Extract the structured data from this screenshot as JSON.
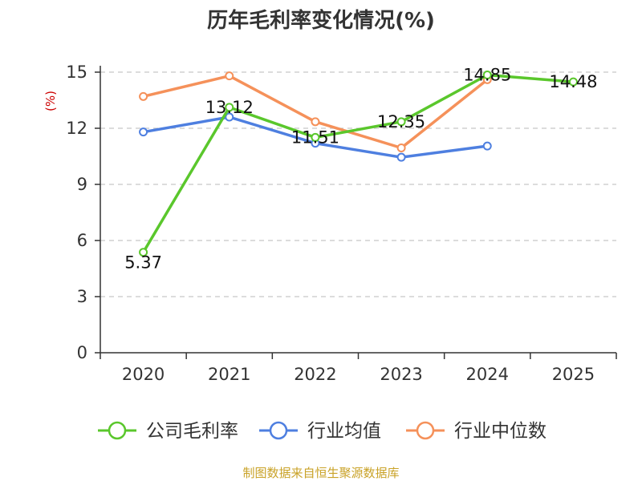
{
  "chart_data": {
    "type": "line",
    "title": "历年毛利率变化情况(%)",
    "ylabel": "(%)",
    "categories": [
      "2020",
      "2021",
      "2022",
      "2023",
      "2024",
      "2025"
    ],
    "ylim": [
      0,
      15
    ],
    "yticks": [
      0,
      3,
      6,
      9,
      12,
      15
    ],
    "grid": true,
    "legend_position": "bottom",
    "series": [
      {
        "name": "公司毛利率",
        "color": "#5ac72c",
        "values": [
          5.37,
          13.12,
          11.51,
          12.35,
          14.85,
          14.48
        ],
        "labels": [
          "5.37",
          "13.12",
          "11.51",
          "12.35",
          "14.85",
          "14.48"
        ]
      },
      {
        "name": "行业均值",
        "color": "#4e7fe0",
        "values": [
          11.8,
          12.6,
          11.2,
          10.45,
          11.05,
          null
        ]
      },
      {
        "name": "行业中位数",
        "color": "#f5915a",
        "values": [
          13.7,
          14.8,
          12.35,
          10.95,
          14.6,
          null
        ]
      }
    ],
    "source": "制图数据来自恒生聚源数据库",
    "colors": {
      "axis": "#333333",
      "grid": "#c8c8c8",
      "ylabel": "#cc0000",
      "source": "#c9a227"
    }
  }
}
